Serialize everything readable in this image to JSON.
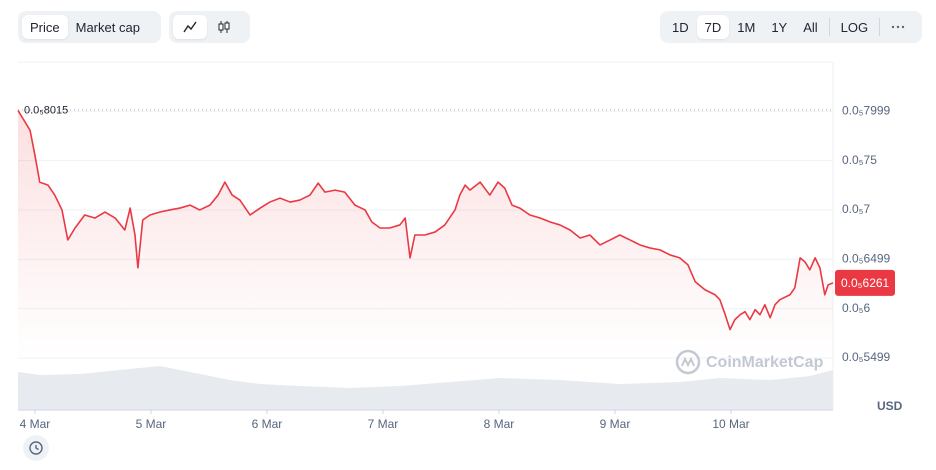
{
  "toolbar": {
    "tabs": [
      "Price",
      "Market cap"
    ],
    "ranges": [
      "1D",
      "7D",
      "1M",
      "1Y",
      "All"
    ],
    "log": "LOG"
  },
  "chart_data": {
    "type": "line",
    "watermark": "CoinMarketCap",
    "currency": "USD",
    "series": [
      {
        "name": "Price",
        "color": "#ea3943",
        "x": [
          -3.5,
          -1.0,
          0,
          1.0,
          2.7,
          4.1,
          5.6,
          6.8,
          8.3,
          10.3,
          12.4,
          14.5,
          16.6,
          18.6,
          19.7,
          20.7,
          21.3,
          22.3,
          23.8,
          25.9,
          27.9,
          30.0,
          32.1,
          34.1,
          36.2,
          37.9,
          39.3,
          40.8,
          42.4,
          44.5,
          46.6,
          48.6,
          50.7,
          52.8,
          54.8,
          56.9,
          58.6,
          60.0,
          62.1,
          64.1,
          66.2,
          68.3,
          69.7,
          71.4,
          73.4,
          75.5,
          76.6,
          77.6,
          78.6,
          80.7,
          82.8,
          84.8,
          86.9,
          87.9,
          89.0,
          90.0,
          92.1,
          94.1,
          95.8,
          97.2,
          98.7,
          100.3,
          102.4,
          104.5,
          106.6,
          108.6,
          110.7,
          112.8,
          114.8,
          116.9,
          119.0,
          121.0,
          123.1,
          125.2,
          127.2,
          129.3,
          131.4,
          133.4,
          135.1,
          136.6,
          138.6,
          140.7,
          141.7,
          142.8,
          143.8,
          144.8,
          145.9,
          146.9,
          147.9,
          149.0,
          150.0,
          151.0,
          152.1,
          153.1,
          154.1,
          156.2,
          157.2,
          158.3,
          159.3,
          160.3,
          161.4,
          162.4,
          163.4,
          164.1,
          165.1
        ],
        "values": [
          8.009e-06,
          7.807e-06,
          7.555e-06,
          7.282e-06,
          7.252e-06,
          7.151e-06,
          7e-06,
          6.696e-06,
          6.817e-06,
          6.949e-06,
          6.918e-06,
          6.979e-06,
          6.918e-06,
          6.797e-06,
          7.019e-06,
          6.746e-06,
          6.413e-06,
          6.898e-06,
          6.949e-06,
          6.979e-06,
          7e-06,
          7.019e-06,
          7.049e-06,
          7e-06,
          7.049e-06,
          7.151e-06,
          7.282e-06,
          7.151e-06,
          7.1e-06,
          6.949e-06,
          7.019e-06,
          7.08e-06,
          7.12e-06,
          7.08e-06,
          7.1e-06,
          7.151e-06,
          7.272e-06,
          7.181e-06,
          7.201e-06,
          7.181e-06,
          7.049e-06,
          7e-06,
          6.878e-06,
          6.817e-06,
          6.817e-06,
          6.848e-06,
          6.918e-06,
          6.514e-06,
          6.746e-06,
          6.746e-06,
          6.777e-06,
          6.848e-06,
          7e-06,
          7.151e-06,
          7.252e-06,
          7.201e-06,
          7.282e-06,
          7.151e-06,
          7.282e-06,
          7.221e-06,
          7.049e-06,
          7.019e-06,
          6.949e-06,
          6.918e-06,
          6.878e-06,
          6.848e-06,
          6.797e-06,
          6.716e-06,
          6.746e-06,
          6.645e-06,
          6.696e-06,
          6.746e-06,
          6.696e-06,
          6.645e-06,
          6.615e-06,
          6.595e-06,
          6.544e-06,
          6.514e-06,
          6.443e-06,
          6.272e-06,
          6.191e-06,
          6.14e-06,
          6.09e-06,
          5.938e-06,
          5.787e-06,
          5.888e-06,
          5.938e-06,
          5.969e-06,
          5.888e-06,
          5.989e-06,
          5.938e-06,
          6.039e-06,
          5.908e-06,
          6.039e-06,
          6.09e-06,
          6.14e-06,
          6.211e-06,
          6.514e-06,
          6.474e-06,
          6.393e-06,
          6.514e-06,
          6.413e-06,
          6.14e-06,
          6.241e-06,
          6.261e-06
        ]
      }
    ],
    "xlim": [
      -3.5,
      165.1
    ],
    "xticks": [
      {
        "value": 0,
        "label": "4 Mar"
      },
      {
        "value": 24,
        "label": "5 Mar"
      },
      {
        "value": 48,
        "label": "6 Mar"
      },
      {
        "value": 72,
        "label": "7 Mar"
      },
      {
        "value": 96,
        "label": "8 Mar"
      },
      {
        "value": 120,
        "label": "9 Mar"
      },
      {
        "value": 144,
        "label": "10 Mar"
      }
    ],
    "ylim": [
      5.499e-06,
      8.5e-06
    ],
    "yticks": [
      {
        "value": 7.999e-06,
        "label": "0.0₅7999"
      },
      {
        "value": 7.5e-06,
        "label": "0.0₅75"
      },
      {
        "value": 7e-06,
        "label": "0.0₅7"
      },
      {
        "value": 6.499e-06,
        "label": "0.0₅6499"
      },
      {
        "value": 6e-06,
        "label": "0.0₅6"
      },
      {
        "value": 5.499e-06,
        "label": "0.0₅5499"
      }
    ],
    "grid": true,
    "start_price": {
      "value": 8.015e-06,
      "label": "0.0₅8015"
    },
    "last_price": {
      "value": 6.261e-06,
      "label": "0.0₅6261"
    }
  }
}
